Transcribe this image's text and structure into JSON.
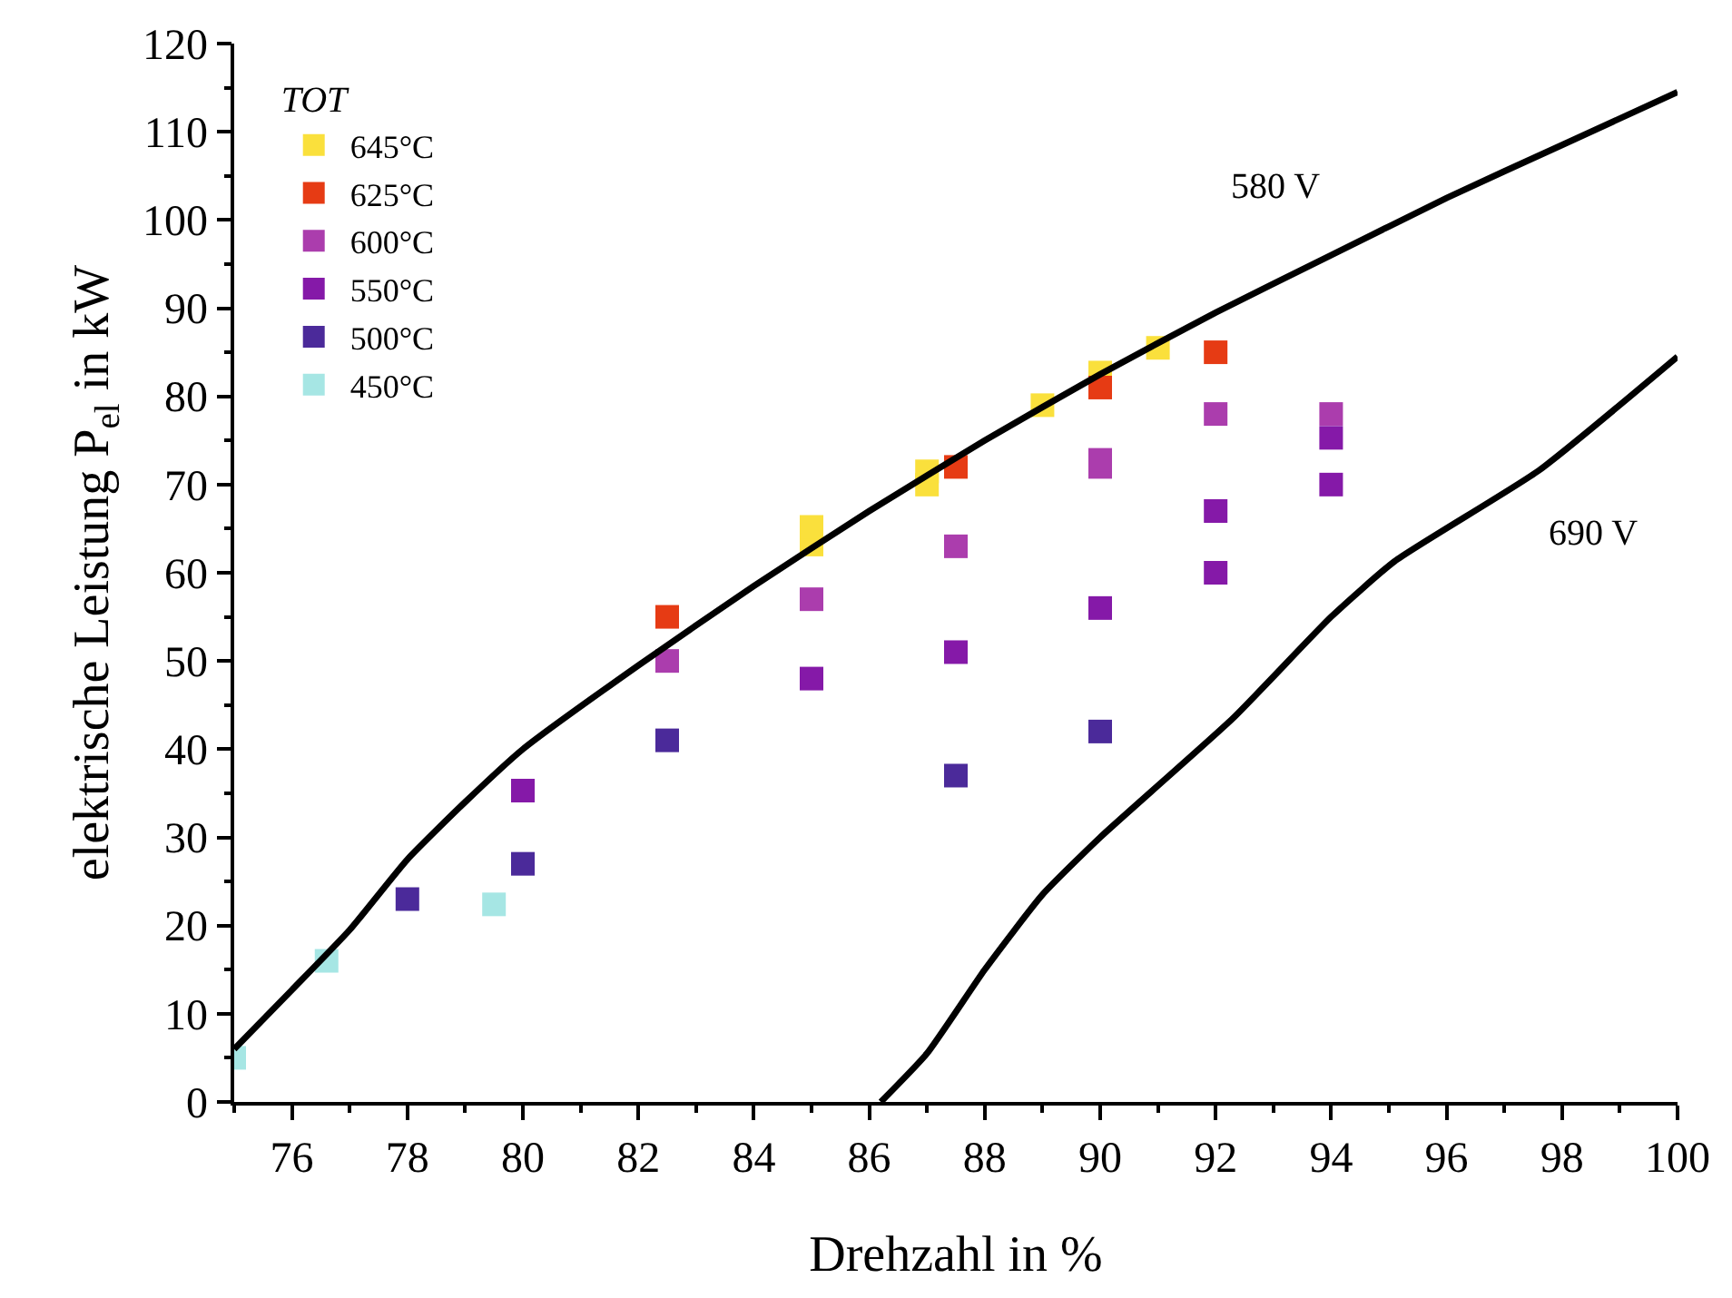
{
  "chart_data": {
    "type": "scatter",
    "xlabel": "Drehzahl in %",
    "ylabel": "elektrische Leistung P$_{el}$ in kW",
    "legend_title": "TOT",
    "xlim": [
      75,
      100
    ],
    "ylim": [
      0,
      120
    ],
    "xticks": [
      76,
      78,
      80,
      82,
      84,
      86,
      88,
      90,
      92,
      94,
      96,
      98,
      100
    ],
    "yticks": [
      0,
      10,
      20,
      30,
      40,
      50,
      60,
      70,
      80,
      90,
      100,
      110,
      120
    ],
    "legend": "top left",
    "marker": "square",
    "series": [
      {
        "name": "645°C",
        "color": "#fae03c",
        "x": [
          85,
          85,
          87,
          87,
          89,
          90,
          91
        ],
        "values": [
          63.2,
          65.2,
          70,
          71.5,
          79,
          82.7,
          85.5
        ]
      },
      {
        "name": "625°C",
        "color": "#e63b14",
        "x": [
          82.5,
          87.5,
          90,
          92
        ],
        "values": [
          55,
          72,
          81,
          85
        ]
      },
      {
        "name": "600°C",
        "color": "#ab3dad",
        "x": [
          82.5,
          85,
          87.5,
          90,
          90,
          92,
          94
        ],
        "values": [
          50,
          57,
          63,
          72,
          72.8,
          78,
          78
        ]
      },
      {
        "name": "550°C",
        "color": "#8519a8",
        "x": [
          80,
          85,
          87.5,
          90,
          92,
          92,
          94,
          94
        ],
        "values": [
          35.3,
          48,
          51,
          56,
          60,
          67,
          70,
          75.3
        ]
      },
      {
        "name": "500°C",
        "color": "#4b2a9a",
        "x": [
          78,
          80,
          82.5,
          87.5,
          90
        ],
        "values": [
          23,
          27,
          41,
          37,
          42
        ]
      },
      {
        "name": "450°C",
        "color": "#a6e6e4",
        "x": [
          75,
          76.6,
          79.5
        ],
        "values": [
          5,
          16,
          22.4
        ]
      },
      {
        "type": "line",
        "marker": "none",
        "name": "580 V",
        "color": "#000000",
        "line_style": "solid",
        "x": [
          75,
          76,
          77,
          78,
          79,
          80,
          82,
          84,
          86,
          88,
          90,
          92,
          94,
          96,
          98,
          100
        ],
        "values": [
          6,
          12.7,
          19.5,
          27.5,
          34,
          40,
          49.5,
          58.5,
          67,
          75,
          82.5,
          89.5,
          96,
          102.5,
          108.5,
          114.5
        ]
      },
      {
        "type": "line",
        "marker": "none",
        "name": "690 V",
        "color": "#000000",
        "line_style": "solid",
        "x": [
          86.2,
          87,
          88,
          89,
          90,
          92.3,
          94,
          95.1,
          97.6,
          100
        ],
        "values": [
          0,
          5.5,
          15,
          23.5,
          30,
          43.5,
          55,
          61.3,
          71.6,
          84.5
        ]
      }
    ]
  }
}
